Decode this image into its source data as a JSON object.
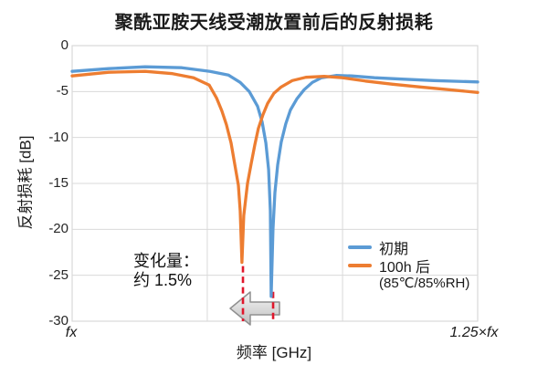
{
  "chart": {
    "title": "聚酰亚胺天线受潮放置前后的反射损耗",
    "x_axis_label": "频率 [GHz]",
    "y_axis_label": "反射损耗 [dB]",
    "x_start_label": "fx",
    "x_end_label": "1.25×fx"
  },
  "legend": {
    "items": [
      {
        "label": "初期",
        "color": "#5B9BD5"
      },
      {
        "label": "100h 后",
        "sublabel": "(85℃/85%RH)",
        "color": "#ED7D31"
      }
    ]
  },
  "annotation": {
    "line1": "变化量：",
    "line2": "约 1.5%"
  },
  "colors": {
    "grid": "#D9D9D9",
    "dashed_marker": "#E0162B",
    "arrow_fill_light": "#F7F7F7",
    "arrow_fill_dark": "#BEBEBE",
    "arrow_stroke": "#8F8F8F"
  },
  "chart_data": {
    "type": "line",
    "title": "聚酰亚胺天线受潮放置前后的反射损耗",
    "xlabel": "频率 [GHz]",
    "ylabel": "反射损耗 [dB]",
    "x_unit": "multiples of fx",
    "xlim": [
      1.0,
      1.25
    ],
    "ylim": [
      -30,
      0
    ],
    "yticks": [
      0,
      -5,
      -10,
      -15,
      -20,
      -25,
      -30
    ],
    "xticks": [
      {
        "value": 1.0,
        "label": "fx"
      },
      {
        "value": 1.0833,
        "label": ""
      },
      {
        "value": 1.1667,
        "label": ""
      },
      {
        "value": 1.25,
        "label": "1.25×fx"
      }
    ],
    "grid": true,
    "legend_position": "inside lower right",
    "series": [
      {
        "name": "初期",
        "color": "#5B9BD5",
        "resonance_f": 1.123,
        "min_db": -27.3,
        "points": [
          [
            1.0,
            -2.8
          ],
          [
            1.0225,
            -2.5
          ],
          [
            1.045,
            -2.3
          ],
          [
            1.0676,
            -2.4
          ],
          [
            1.085,
            -2.8
          ],
          [
            1.0963,
            -3.2
          ],
          [
            1.1036,
            -4.0
          ],
          [
            1.1092,
            -5.0
          ],
          [
            1.1143,
            -6.6
          ],
          [
            1.1171,
            -8.3
          ],
          [
            1.1194,
            -10.6
          ],
          [
            1.1211,
            -13.5
          ],
          [
            1.1222,
            -18.0
          ],
          [
            1.1227,
            -27.3
          ],
          [
            1.1238,
            -20.0
          ],
          [
            1.125,
            -16.0
          ],
          [
            1.1267,
            -13.0
          ],
          [
            1.1289,
            -10.5
          ],
          [
            1.1317,
            -8.5
          ],
          [
            1.1346,
            -7.0
          ],
          [
            1.1385,
            -5.8
          ],
          [
            1.143,
            -4.8
          ],
          [
            1.1481,
            -4.0
          ],
          [
            1.1537,
            -3.5
          ],
          [
            1.1627,
            -3.25
          ],
          [
            1.1723,
            -3.3
          ],
          [
            1.1864,
            -3.5
          ],
          [
            1.2033,
            -3.65
          ],
          [
            1.223,
            -3.8
          ],
          [
            1.25,
            -3.95
          ]
        ]
      },
      {
        "name": "100h 后 (85℃/85%RH)",
        "color": "#ED7D31",
        "resonance_f": 1.105,
        "min_db": -23.6,
        "points": [
          [
            1.0,
            -3.3
          ],
          [
            1.0225,
            -2.9
          ],
          [
            1.045,
            -2.8
          ],
          [
            1.0619,
            -3.05
          ],
          [
            1.0749,
            -3.5
          ],
          [
            1.0845,
            -4.3
          ],
          [
            1.089,
            -5.7
          ],
          [
            1.0923,
            -7.1
          ],
          [
            1.0951,
            -8.6
          ],
          [
            1.098,
            -10.6
          ],
          [
            1.1002,
            -12.9
          ],
          [
            1.1025,
            -15.2
          ],
          [
            1.1036,
            -18.0
          ],
          [
            1.1047,
            -23.6
          ],
          [
            1.1058,
            -18.5
          ],
          [
            1.1081,
            -15.0
          ],
          [
            1.1103,
            -12.9
          ],
          [
            1.1126,
            -10.8
          ],
          [
            1.1148,
            -9.0
          ],
          [
            1.1177,
            -7.5
          ],
          [
            1.1205,
            -6.3
          ],
          [
            1.1244,
            -5.2
          ],
          [
            1.1289,
            -4.5
          ],
          [
            1.1357,
            -3.8
          ],
          [
            1.1441,
            -3.45
          ],
          [
            1.1554,
            -3.35
          ],
          [
            1.1667,
            -3.5
          ],
          [
            1.1807,
            -3.85
          ],
          [
            1.1976,
            -4.2
          ],
          [
            1.2145,
            -4.5
          ],
          [
            1.25,
            -5.1
          ]
        ]
      }
    ],
    "annotations": {
      "change_text": "变化量：约 1.5%",
      "dashed_lines": [
        {
          "f": 1.1053,
          "db_top": -24.0,
          "db_bottom": -30
        },
        {
          "f": 1.1239,
          "db_top": -26.8,
          "db_bottom": -30
        }
      ],
      "arrow": "gray left-pointing block arrow between the two dashed resonance markers"
    }
  }
}
